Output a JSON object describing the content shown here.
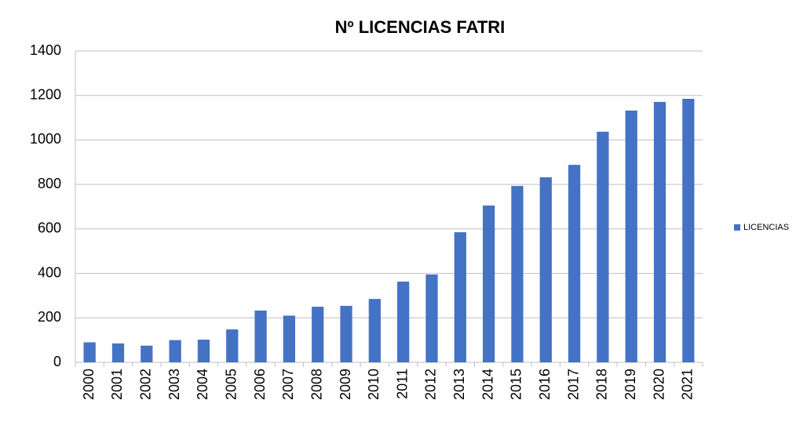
{
  "chart_data": {
    "type": "bar",
    "title": "Nº LICENCIAS FATRI",
    "categories": [
      "2000",
      "2001",
      "2002",
      "2003",
      "2004",
      "2005",
      "2006",
      "2007",
      "2008",
      "2009",
      "2010",
      "2011",
      "2012",
      "2013",
      "2014",
      "2015",
      "2016",
      "2017",
      "2018",
      "2019",
      "2020",
      "2021"
    ],
    "series": [
      {
        "name": "LICENCIAS",
        "color": "#4472c4",
        "values": [
          90,
          85,
          75,
          100,
          102,
          148,
          233,
          210,
          250,
          254,
          285,
          363,
          395,
          585,
          705,
          793,
          832,
          888,
          1037,
          1132,
          1171,
          1185
        ]
      }
    ],
    "ylim": [
      0,
      1400
    ],
    "yticks": [
      0,
      200,
      400,
      600,
      800,
      1000,
      1200,
      1400
    ],
    "grid": true,
    "legend": "right"
  }
}
